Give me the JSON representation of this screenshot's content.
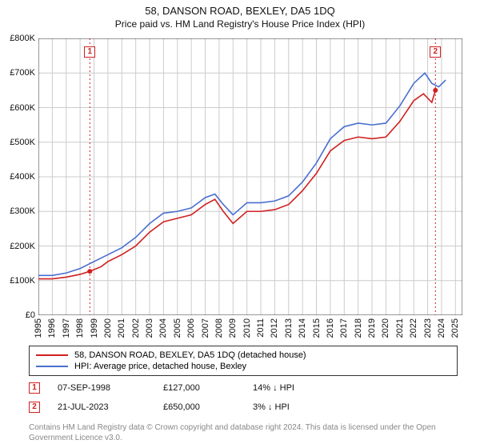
{
  "title": "58, DANSON ROAD, BEXLEY, DA5 1DQ",
  "subtitle": "Price paid vs. HM Land Registry's House Price Index (HPI)",
  "chart": {
    "type": "line",
    "background_color": "#ffffff",
    "border_color": "#333333",
    "grid_color": "#cccccc",
    "xlim": [
      1995,
      2025.5
    ],
    "ylim": [
      0,
      800000
    ],
    "ytick_step": 100000,
    "yticks": [
      "£0",
      "£100K",
      "£200K",
      "£300K",
      "£400K",
      "£500K",
      "£600K",
      "£700K",
      "£800K"
    ],
    "xticks": [
      "1995",
      "1996",
      "1997",
      "1998",
      "1999",
      "2000",
      "2001",
      "2002",
      "2003",
      "2004",
      "2005",
      "2006",
      "2007",
      "2008",
      "2009",
      "2010",
      "2011",
      "2012",
      "2013",
      "2014",
      "2015",
      "2016",
      "2017",
      "2018",
      "2019",
      "2020",
      "2021",
      "2022",
      "2023",
      "2024",
      "2025"
    ],
    "series": [
      {
        "name": "58, DANSON ROAD, BEXLEY, DA5 1DQ (detached house)",
        "color": "#d02020",
        "line_width": 1.6,
        "points": [
          [
            1995,
            105000
          ],
          [
            1996,
            105000
          ],
          [
            1997,
            110000
          ],
          [
            1998,
            118000
          ],
          [
            1998.7,
            127000
          ],
          [
            1999.5,
            140000
          ],
          [
            2000,
            155000
          ],
          [
            2001,
            175000
          ],
          [
            2002,
            200000
          ],
          [
            2003,
            240000
          ],
          [
            2004,
            270000
          ],
          [
            2005,
            280000
          ],
          [
            2006,
            290000
          ],
          [
            2007,
            320000
          ],
          [
            2007.7,
            335000
          ],
          [
            2008.3,
            300000
          ],
          [
            2009,
            265000
          ],
          [
            2010,
            300000
          ],
          [
            2011,
            300000
          ],
          [
            2012,
            305000
          ],
          [
            2013,
            320000
          ],
          [
            2014,
            360000
          ],
          [
            2015,
            410000
          ],
          [
            2016,
            475000
          ],
          [
            2017,
            505000
          ],
          [
            2018,
            515000
          ],
          [
            2019,
            510000
          ],
          [
            2020,
            515000
          ],
          [
            2021,
            560000
          ],
          [
            2022,
            620000
          ],
          [
            2022.7,
            640000
          ],
          [
            2023.3,
            615000
          ],
          [
            2023.56,
            650000
          ]
        ]
      },
      {
        "name": "HPI: Average price, detached house, Bexley",
        "color": "#4a6fd0",
        "line_width": 1.6,
        "points": [
          [
            1995,
            115000
          ],
          [
            1996,
            115000
          ],
          [
            1997,
            122000
          ],
          [
            1998,
            135000
          ],
          [
            1999,
            155000
          ],
          [
            2000,
            175000
          ],
          [
            2001,
            195000
          ],
          [
            2002,
            225000
          ],
          [
            2003,
            265000
          ],
          [
            2004,
            295000
          ],
          [
            2005,
            300000
          ],
          [
            2006,
            310000
          ],
          [
            2007,
            340000
          ],
          [
            2007.7,
            350000
          ],
          [
            2008.3,
            320000
          ],
          [
            2009,
            290000
          ],
          [
            2010,
            325000
          ],
          [
            2011,
            325000
          ],
          [
            2012,
            330000
          ],
          [
            2013,
            345000
          ],
          [
            2014,
            385000
          ],
          [
            2015,
            440000
          ],
          [
            2016,
            510000
          ],
          [
            2017,
            545000
          ],
          [
            2018,
            555000
          ],
          [
            2019,
            550000
          ],
          [
            2020,
            555000
          ],
          [
            2021,
            605000
          ],
          [
            2022,
            670000
          ],
          [
            2022.8,
            700000
          ],
          [
            2023.3,
            670000
          ],
          [
            2023.8,
            660000
          ],
          [
            2024.3,
            680000
          ]
        ]
      }
    ],
    "sale_markers": [
      {
        "label": "1",
        "x": 1998.7,
        "y": 127000,
        "color": "#d02020",
        "vline_dash": "2,3",
        "box_y": 760000
      },
      {
        "label": "2",
        "x": 2023.56,
        "y": 650000,
        "color": "#d02020",
        "vline_dash": "2,3",
        "box_y": 760000
      }
    ],
    "marker_dot_radius": 3,
    "axis_font_size": 11
  },
  "legend": {
    "items": [
      {
        "swatch_color": "#d02020",
        "label": "58, DANSON ROAD, BEXLEY, DA5 1DQ (detached house)"
      },
      {
        "swatch_color": "#4a6fd0",
        "label": "HPI: Average price, detached house, Bexley"
      }
    ]
  },
  "footer_rows": [
    {
      "marker": "1",
      "marker_color": "#d02020",
      "date": "07-SEP-1998",
      "price": "£127,000",
      "diff": "14% ↓ HPI"
    },
    {
      "marker": "2",
      "marker_color": "#d02020",
      "date": "21-JUL-2023",
      "price": "£650,000",
      "diff": "3% ↓ HPI"
    }
  ],
  "credit": "Contains HM Land Registry data © Crown copyright and database right 2024. This data is licensed under the Open Government Licence v3.0."
}
